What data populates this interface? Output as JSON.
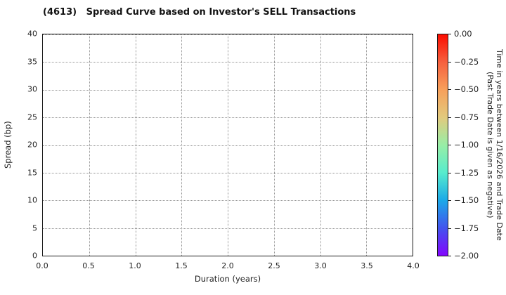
{
  "title": "(4613)   Spread Curve based on Investor's SELL Transactions",
  "chart_data": {
    "type": "scatter",
    "title": "(4613)   Spread Curve based on Investor's SELL Transactions",
    "xlabel": "Duration (years)",
    "ylabel": "Spread (bp)",
    "xlim": [
      0.0,
      4.0
    ],
    "ylim": [
      0,
      40
    ],
    "x_ticks": [
      "0.0",
      "0.5",
      "1.0",
      "1.5",
      "2.0",
      "2.5",
      "3.0",
      "3.5",
      "4.0"
    ],
    "y_ticks": [
      "0",
      "5",
      "10",
      "15",
      "20",
      "25",
      "30",
      "35",
      "40"
    ],
    "grid": true,
    "grid_style": "dotted",
    "legend_position": "none",
    "points": [],
    "colorbar": {
      "label_line1": "Time in years between 1/16/2026 and Trade Date",
      "label_line2": "(Past Trade Date is given as negative)",
      "ticks": [
        "0.00",
        "−0.25",
        "−0.50",
        "−0.75",
        "−1.00",
        "−1.25",
        "−1.50",
        "−1.75",
        "−2.00"
      ],
      "range": [
        0.0,
        -2.0
      ],
      "colormap": "rainbow",
      "gradient_top_to_bottom": [
        "#fc0d00",
        "#f6603e",
        "#f7a05b",
        "#e2ca7d",
        "#98eea6",
        "#57eccd",
        "#1ba9e8",
        "#4354ee",
        "#8306fe"
      ]
    }
  },
  "colors": {
    "background": "#ffffff",
    "frame": "#1a1a1a",
    "grid": "#949494",
    "text": "#222222"
  }
}
